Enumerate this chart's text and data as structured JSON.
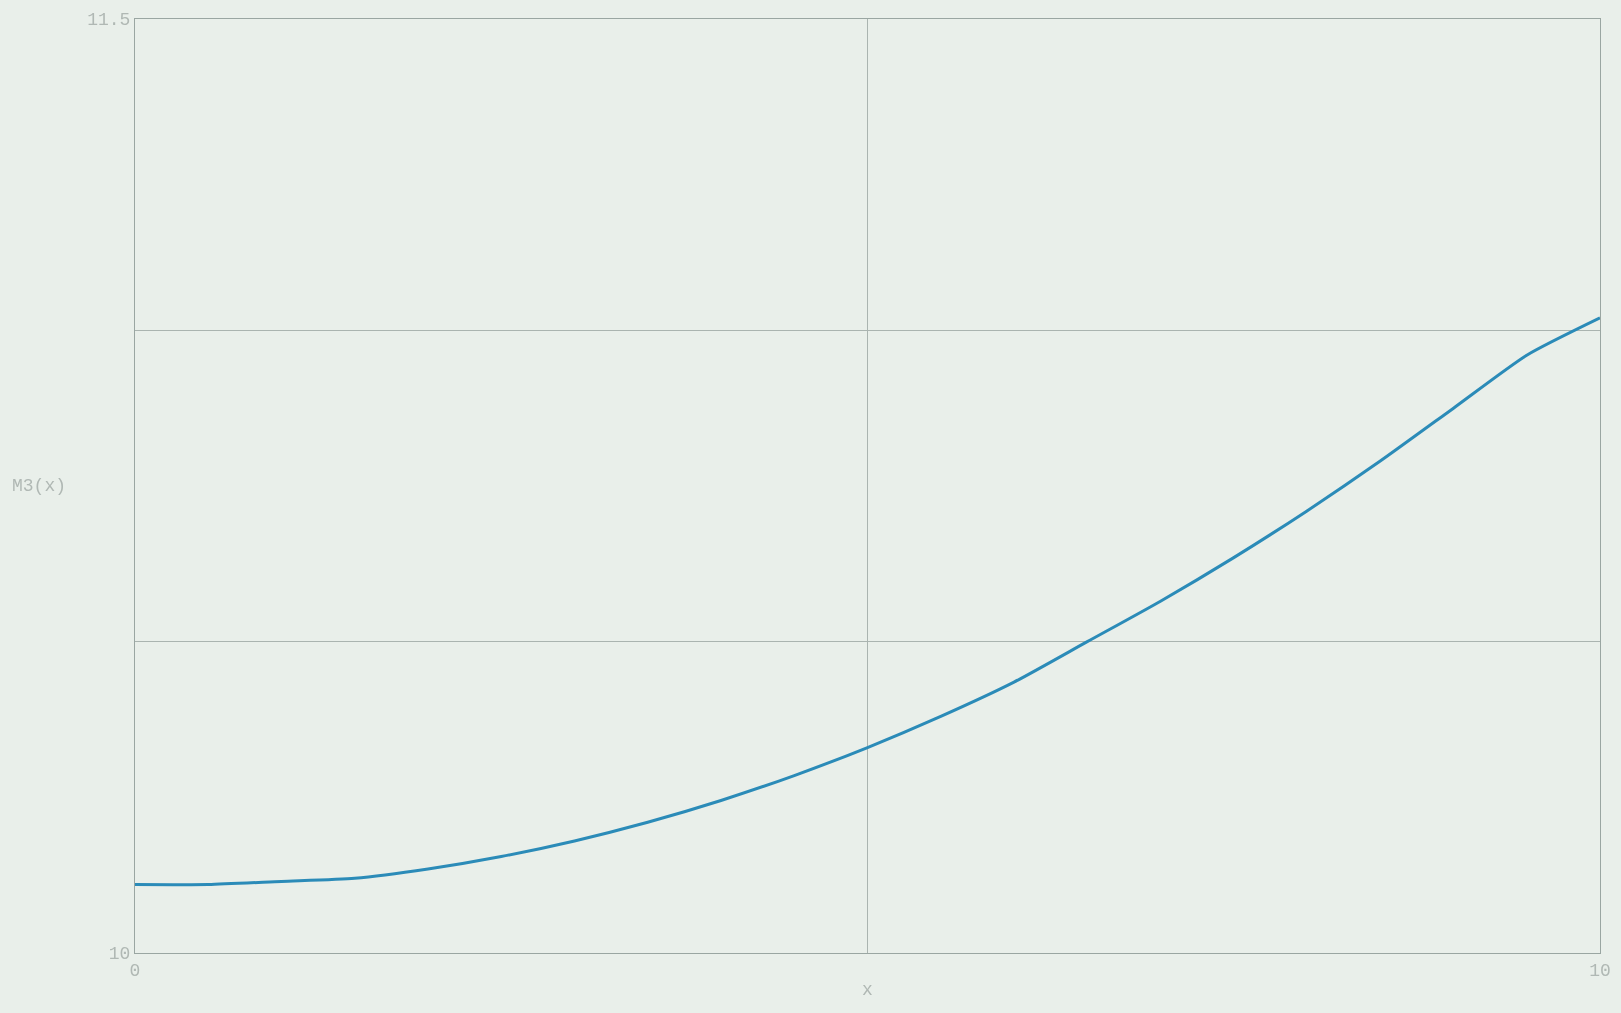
{
  "chart_data": {
    "type": "line",
    "xlabel": "x",
    "ylabel": "M3(x)",
    "x": [
      0,
      0.5,
      1,
      1.5,
      2,
      2.5,
      3,
      3.5,
      4,
      4.5,
      5,
      5.5,
      6,
      6.5,
      7,
      7.5,
      8,
      8.5,
      9,
      9.5,
      10
    ],
    "series": [
      {
        "color": "#2b8bb8",
        "values": [
          10.11,
          10.11,
          10.115,
          10.12,
          10.135,
          10.155,
          10.18,
          10.21,
          10.245,
          10.285,
          10.33,
          10.38,
          10.435,
          10.5,
          10.565,
          10.635,
          10.71,
          10.79,
          10.875,
          10.96,
          11.02
        ]
      }
    ],
    "xlim": [
      0,
      10
    ],
    "ylim": [
      10,
      11.5
    ],
    "xticks": [
      0,
      {
        "value": 5,
        "label": null
      },
      10
    ],
    "yticks": [
      10,
      {
        "value": 10.5,
        "label": null
      },
      {
        "value": 11,
        "label": null
      },
      11.5
    ],
    "grid": true,
    "legend": false,
    "marker": "none",
    "line_style": "solid"
  }
}
